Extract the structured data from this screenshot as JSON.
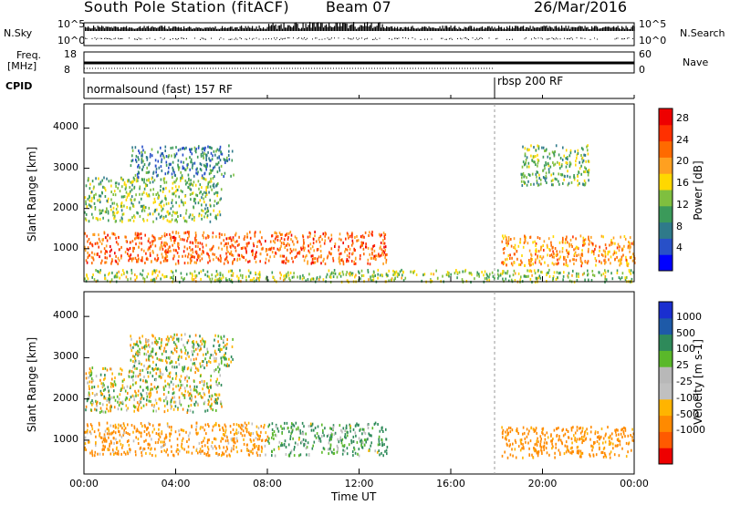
{
  "header": {
    "title": "South Pole Station (fitACF)",
    "beam": "Beam 07",
    "date": "26/Mar/2016"
  },
  "top_panels": {
    "nsky_label": "N.Sky",
    "nsearch_label": "N.Search",
    "nsky_ticks": [
      "10^5",
      "10^0"
    ],
    "nsearch_ticks": [
      "10^5",
      "10^0"
    ],
    "freq_label_1": "Freq.",
    "freq_label_2": "[MHz]",
    "freq_ticks": [
      "18",
      "8"
    ],
    "nave_label": "Nave",
    "nave_ticks": [
      "60",
      "0"
    ],
    "cpid_label": "CPID",
    "cpid_segments": [
      {
        "text": "normalsound (fast) 157 RF",
        "start_hour": 0
      },
      {
        "text": "rbsp 200 RF",
        "start_hour": 18
      }
    ]
  },
  "colors": {
    "power": [
      "#0000ff",
      "#2850c8",
      "#2f7a8a",
      "#3b9a5a",
      "#7fbf3f",
      "#ffd800",
      "#ffa020",
      "#ff6a00",
      "#ff3000",
      "#ee0000"
    ],
    "velocity": [
      "#ee0000",
      "#ff5a00",
      "#ff8a00",
      "#ffb400",
      "#c0c0c0",
      "#b8b8b8",
      "#5ab82a",
      "#2e8a5a",
      "#1e5aa8",
      "#1a2fd0"
    ]
  },
  "chart_data": [
    {
      "type": "heatmap",
      "name": "power",
      "ylabel": "Slant Range [km]",
      "xlabel": "Time UT",
      "xlim": [
        0,
        24
      ],
      "ylim": [
        180,
        4600
      ],
      "x_ticks": [
        "00:00",
        "04:00",
        "08:00",
        "12:00",
        "16:00",
        "20:00",
        "00:00"
      ],
      "y_ticks": [
        1000,
        2000,
        3000,
        4000
      ],
      "colorbar_label": "Power [dB]",
      "colorbar_ticks": [
        "4",
        "8",
        "12",
        "16",
        "20",
        "24",
        "28"
      ],
      "colorbar_range": [
        0,
        30
      ],
      "regions": [
        {
          "t0": 0.0,
          "t1": 13.2,
          "r0": 650,
          "r1": 1450,
          "value": 23
        },
        {
          "t0": 18.2,
          "t1": 24.0,
          "r0": 600,
          "r1": 1350,
          "value": 20
        },
        {
          "t0": 0.0,
          "t1": 6.0,
          "r0": 1700,
          "r1": 2800,
          "value": 13
        },
        {
          "t0": 2.0,
          "t1": 6.5,
          "r0": 2800,
          "r1": 3600,
          "value": 8
        },
        {
          "t0": 19.0,
          "t1": 22.0,
          "r0": 2600,
          "r1": 3600,
          "value": 12
        },
        {
          "t0": 0.0,
          "t1": 24.0,
          "r0": 200,
          "r1": 500,
          "value": 14
        }
      ]
    },
    {
      "type": "heatmap",
      "name": "velocity",
      "ylabel": "Slant Range [km]",
      "xlabel": "Time UT",
      "xlim": [
        0,
        24
      ],
      "ylim": [
        180,
        4600
      ],
      "x_ticks": [
        "00:00",
        "04:00",
        "08:00",
        "12:00",
        "16:00",
        "20:00",
        "00:00"
      ],
      "y_ticks": [
        1000,
        2000,
        3000,
        4000
      ],
      "colorbar_label": "Velocity [m s-1]",
      "colorbar_ticks": [
        "1000",
        "500",
        "100",
        "25",
        "-25",
        "-100",
        "-500",
        "-1000"
      ],
      "regions": [
        {
          "t0": 0.0,
          "t1": 8.0,
          "r0": 650,
          "r1": 1450,
          "value": -150
        },
        {
          "t0": 8.0,
          "t1": 13.2,
          "r0": 650,
          "r1": 1450,
          "value": 120
        },
        {
          "t0": 18.2,
          "t1": 24.0,
          "r0": 600,
          "r1": 1350,
          "value": -200
        },
        {
          "t0": 0.0,
          "t1": 6.0,
          "r0": 1700,
          "r1": 2800,
          "value": 0
        },
        {
          "t0": 2.0,
          "t1": 6.5,
          "r0": 2800,
          "r1": 3600,
          "value": 0
        }
      ]
    }
  ]
}
